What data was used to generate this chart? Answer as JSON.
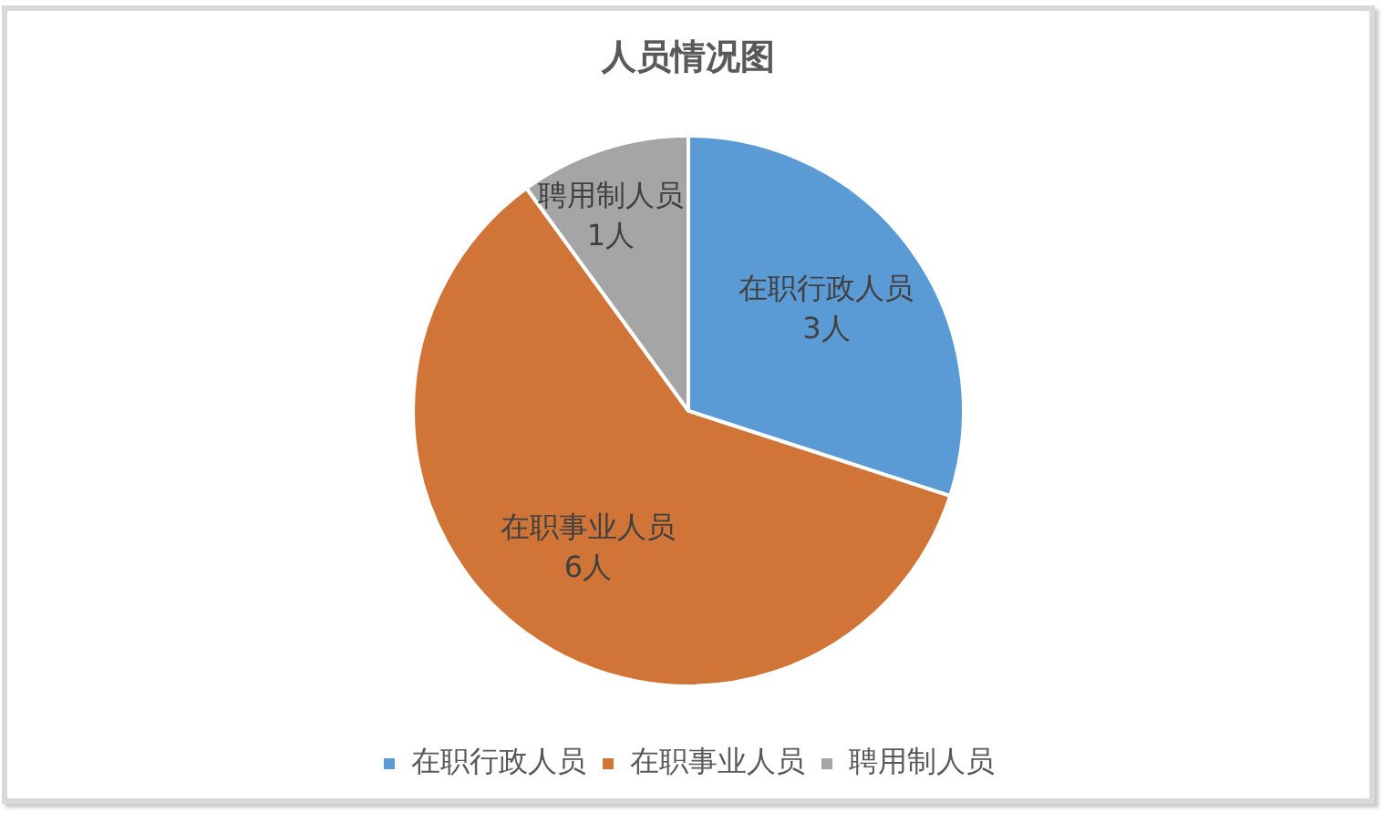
{
  "chart_data": {
    "type": "pie",
    "title": "人员情况图",
    "categories": [
      "在职行政人员",
      "在职事业人员",
      "聘用制人员"
    ],
    "values": [
      3,
      6,
      1
    ],
    "colors": [
      "#5b9bd5",
      "#d07537",
      "#a5a5a5"
    ],
    "value_labels": [
      "3人",
      "6人",
      "1人"
    ],
    "legend": "bottom"
  }
}
